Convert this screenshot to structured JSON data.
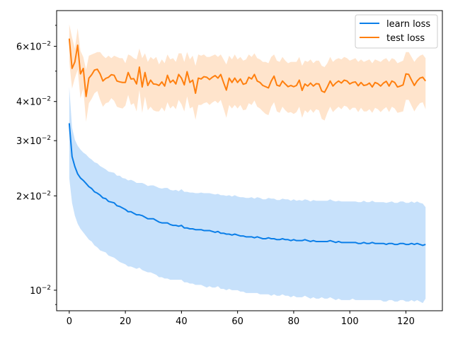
{
  "chart_data": {
    "type": "line",
    "title": "",
    "xlabel": "",
    "ylabel": "",
    "xlim": [
      -4.5,
      133
    ],
    "ylim": [
      0.0086,
      0.078
    ],
    "yscale": "log",
    "grid": false,
    "legend_position": "top-right",
    "x_ticks": [
      0,
      20,
      40,
      60,
      80,
      100,
      120
    ],
    "x_tick_labels": [
      "0",
      "20",
      "40",
      "60",
      "80",
      "100",
      "120"
    ],
    "y_major_ticks": [
      {
        "value": 0.01,
        "mantissa": "10",
        "exp": "−2"
      },
      {
        "value": 0.02,
        "mantissa": "2×10",
        "exp": "−2"
      },
      {
        "value": 0.03,
        "mantissa": "3×10",
        "exp": "−2"
      },
      {
        "value": 0.04,
        "mantissa": "4×10",
        "exp": "−2"
      },
      {
        "value": 0.06,
        "mantissa": "6×10",
        "exp": "−2"
      }
    ],
    "y_minor_ticks": [
      0.009,
      0.05,
      0.07
    ],
    "series": [
      {
        "name": "learn loss",
        "color": "#0a7ee8",
        "band_color": "#8fc3f7",
        "x": [
          0,
          1,
          2,
          3,
          4,
          5,
          6,
          7,
          8,
          9,
          10,
          11,
          12,
          13,
          14,
          15,
          16,
          17,
          18,
          19,
          20,
          21,
          22,
          23,
          24,
          25,
          26,
          27,
          28,
          29,
          30,
          31,
          32,
          33,
          34,
          35,
          36,
          37,
          38,
          39,
          40,
          41,
          42,
          43,
          44,
          45,
          46,
          47,
          48,
          49,
          50,
          51,
          52,
          53,
          54,
          55,
          56,
          57,
          58,
          59,
          60,
          61,
          62,
          63,
          64,
          65,
          66,
          67,
          68,
          69,
          70,
          71,
          72,
          73,
          74,
          75,
          76,
          77,
          78,
          79,
          80,
          81,
          82,
          83,
          84,
          85,
          86,
          87,
          88,
          89,
          90,
          91,
          92,
          93,
          94,
          95,
          96,
          97,
          98,
          99,
          100,
          101,
          102,
          103,
          104,
          105,
          106,
          107,
          108,
          109,
          110,
          111,
          112,
          113,
          114,
          115,
          116,
          117,
          118,
          119,
          120,
          121,
          122,
          123,
          124,
          125,
          126,
          127
        ],
        "y": [
          0.0341,
          0.0267,
          0.0248,
          0.0235,
          0.0228,
          0.0224,
          0.0219,
          0.0214,
          0.0211,
          0.0206,
          0.0204,
          0.0201,
          0.0197,
          0.0196,
          0.0192,
          0.0191,
          0.019,
          0.0186,
          0.0185,
          0.0183,
          0.0181,
          0.0178,
          0.0178,
          0.0176,
          0.0174,
          0.0174,
          0.0173,
          0.0171,
          0.0169,
          0.0169,
          0.0169,
          0.0167,
          0.0165,
          0.0164,
          0.0164,
          0.0164,
          0.0162,
          0.0161,
          0.0161,
          0.016,
          0.0161,
          0.0158,
          0.0158,
          0.0157,
          0.0157,
          0.0156,
          0.0156,
          0.0156,
          0.0155,
          0.0155,
          0.0155,
          0.0154,
          0.0153,
          0.0154,
          0.0152,
          0.0152,
          0.0151,
          0.0151,
          0.015,
          0.0151,
          0.015,
          0.0149,
          0.0149,
          0.0148,
          0.0148,
          0.0148,
          0.0147,
          0.0148,
          0.0147,
          0.0146,
          0.0146,
          0.0147,
          0.0146,
          0.0146,
          0.0145,
          0.0145,
          0.0146,
          0.0145,
          0.0145,
          0.0144,
          0.0145,
          0.0144,
          0.0144,
          0.0144,
          0.0145,
          0.0144,
          0.0143,
          0.0144,
          0.0143,
          0.0143,
          0.0143,
          0.0143,
          0.0143,
          0.0144,
          0.0143,
          0.0142,
          0.0143,
          0.0142,
          0.0142,
          0.0142,
          0.0142,
          0.0142,
          0.0142,
          0.0141,
          0.0141,
          0.0142,
          0.0141,
          0.0141,
          0.0142,
          0.0141,
          0.0141,
          0.0141,
          0.0141,
          0.014,
          0.0141,
          0.0141,
          0.014,
          0.014,
          0.0141,
          0.0141,
          0.014,
          0.014,
          0.0141,
          0.014,
          0.0141,
          0.014,
          0.0139,
          0.014
        ],
        "upper": [
          0.0445,
          0.033,
          0.0302,
          0.0289,
          0.0281,
          0.0275,
          0.0271,
          0.0265,
          0.0261,
          0.0256,
          0.0254,
          0.0249,
          0.0246,
          0.0243,
          0.0239,
          0.0238,
          0.0237,
          0.0232,
          0.0232,
          0.0228,
          0.0227,
          0.0224,
          0.0225,
          0.0223,
          0.022,
          0.022,
          0.022,
          0.0218,
          0.0215,
          0.0216,
          0.0216,
          0.0214,
          0.0212,
          0.0211,
          0.0212,
          0.0212,
          0.0209,
          0.0208,
          0.0209,
          0.0207,
          0.021,
          0.0206,
          0.0206,
          0.0205,
          0.0205,
          0.0204,
          0.0204,
          0.0205,
          0.0204,
          0.0204,
          0.0204,
          0.0203,
          0.0202,
          0.0203,
          0.0201,
          0.0201,
          0.02,
          0.0201,
          0.0199,
          0.0201,
          0.0199,
          0.0198,
          0.0198,
          0.0197,
          0.0197,
          0.0198,
          0.0196,
          0.0198,
          0.0197,
          0.0195,
          0.0195,
          0.0197,
          0.0196,
          0.0196,
          0.0194,
          0.0194,
          0.0196,
          0.0195,
          0.0195,
          0.0193,
          0.0195,
          0.0193,
          0.0194,
          0.0193,
          0.0195,
          0.0194,
          0.0192,
          0.0194,
          0.0193,
          0.0193,
          0.0193,
          0.0193,
          0.0193,
          0.0195,
          0.0193,
          0.0192,
          0.0193,
          0.0192,
          0.0192,
          0.0192,
          0.0192,
          0.0192,
          0.0192,
          0.0191,
          0.0191,
          0.0193,
          0.0191,
          0.0191,
          0.0193,
          0.0191,
          0.0191,
          0.0191,
          0.0191,
          0.019,
          0.0191,
          0.0192,
          0.019,
          0.019,
          0.0192,
          0.0192,
          0.019,
          0.019,
          0.0192,
          0.019,
          0.0192,
          0.019,
          0.0189,
          0.0184
        ],
        "lower": [
          0.0228,
          0.019,
          0.0173,
          0.0163,
          0.0157,
          0.0153,
          0.0149,
          0.0145,
          0.0143,
          0.0139,
          0.0137,
          0.0134,
          0.0133,
          0.0132,
          0.0129,
          0.0128,
          0.0127,
          0.0125,
          0.0123,
          0.0122,
          0.0121,
          0.0119,
          0.0119,
          0.0118,
          0.0117,
          0.0118,
          0.0116,
          0.0115,
          0.0114,
          0.0114,
          0.0113,
          0.0112,
          0.011,
          0.011,
          0.0109,
          0.0109,
          0.0108,
          0.0108,
          0.0108,
          0.0108,
          0.0108,
          0.0106,
          0.0106,
          0.0105,
          0.0105,
          0.0104,
          0.0104,
          0.0104,
          0.0103,
          0.0102,
          0.0103,
          0.0102,
          0.0102,
          0.0103,
          0.0101,
          0.0101,
          0.01,
          0.0101,
          0.01,
          0.01,
          0.01,
          0.0099,
          0.0099,
          0.0098,
          0.0098,
          0.0098,
          0.0098,
          0.0098,
          0.0097,
          0.0097,
          0.0097,
          0.0097,
          0.0096,
          0.0097,
          0.0096,
          0.0096,
          0.0097,
          0.0096,
          0.0096,
          0.0095,
          0.0096,
          0.0095,
          0.0095,
          0.0095,
          0.0096,
          0.0095,
          0.0094,
          0.0095,
          0.0094,
          0.0094,
          0.0095,
          0.0094,
          0.0094,
          0.0095,
          0.0094,
          0.0093,
          0.0094,
          0.0093,
          0.0093,
          0.0093,
          0.0093,
          0.0094,
          0.0093,
          0.0093,
          0.0093,
          0.0093,
          0.0093,
          0.0093,
          0.0093,
          0.0093,
          0.0093,
          0.0093,
          0.0092,
          0.0092,
          0.0093,
          0.0093,
          0.0092,
          0.0092,
          0.0093,
          0.0093,
          0.0092,
          0.0092,
          0.0093,
          0.0092,
          0.0093,
          0.0092,
          0.0091,
          0.0094
        ]
      },
      {
        "name": "test loss",
        "color": "#ff7f0e",
        "band_color": "#ffc999",
        "x": [
          0,
          1,
          2,
          3,
          4,
          5,
          6,
          7,
          8,
          9,
          10,
          11,
          12,
          13,
          14,
          15,
          16,
          17,
          18,
          19,
          20,
          21,
          22,
          23,
          24,
          25,
          26,
          27,
          28,
          29,
          30,
          31,
          32,
          33,
          34,
          35,
          36,
          37,
          38,
          39,
          40,
          41,
          42,
          43,
          44,
          45,
          46,
          47,
          48,
          49,
          50,
          51,
          52,
          53,
          54,
          55,
          56,
          57,
          58,
          59,
          60,
          61,
          62,
          63,
          64,
          65,
          66,
          67,
          68,
          69,
          70,
          71,
          72,
          73,
          74,
          75,
          76,
          77,
          78,
          79,
          80,
          81,
          82,
          83,
          84,
          85,
          86,
          87,
          88,
          89,
          90,
          91,
          92,
          93,
          94,
          95,
          96,
          97,
          98,
          99,
          100,
          101,
          102,
          103,
          104,
          105,
          106,
          107,
          108,
          109,
          110,
          111,
          112,
          113,
          114,
          115,
          116,
          117,
          118,
          119,
          120,
          121,
          122,
          123,
          124,
          125,
          126,
          127
        ],
        "y": [
          0.0635,
          0.051,
          0.0535,
          0.0605,
          0.049,
          0.051,
          0.0415,
          0.0475,
          0.0487,
          0.0504,
          0.0507,
          0.049,
          0.0465,
          0.0474,
          0.0478,
          0.0487,
          0.0485,
          0.0465,
          0.0462,
          0.046,
          0.046,
          0.0495,
          0.0472,
          0.0473,
          0.0455,
          0.0515,
          0.0445,
          0.0495,
          0.045,
          0.0468,
          0.0455,
          0.0454,
          0.045,
          0.0462,
          0.0448,
          0.0485,
          0.046,
          0.0468,
          0.0455,
          0.0488,
          0.0475,
          0.0452,
          0.0498,
          0.046,
          0.0468,
          0.0425,
          0.0475,
          0.0472,
          0.048,
          0.0478,
          0.047,
          0.0478,
          0.0484,
          0.0475,
          0.0488,
          0.046,
          0.0435,
          0.0475,
          0.046,
          0.0475,
          0.046,
          0.0472,
          0.0454,
          0.0457,
          0.0478,
          0.0472,
          0.0488,
          0.0465,
          0.046,
          0.045,
          0.0446,
          0.0442,
          0.0465,
          0.0482,
          0.0451,
          0.0448,
          0.0465,
          0.0455,
          0.0446,
          0.045,
          0.0446,
          0.045,
          0.0468,
          0.0434,
          0.0455,
          0.0448,
          0.0458,
          0.0448,
          0.0456,
          0.0455,
          0.0432,
          0.0428,
          0.0445,
          0.0465,
          0.0448,
          0.0458,
          0.0465,
          0.0458,
          0.0468,
          0.0465,
          0.0455,
          0.046,
          0.0462,
          0.0449,
          0.046,
          0.045,
          0.0452,
          0.0458,
          0.0445,
          0.046,
          0.0456,
          0.0448,
          0.0458,
          0.0464,
          0.0448,
          0.0465,
          0.046,
          0.0445,
          0.0448,
          0.0452,
          0.049,
          0.0488,
          0.0468,
          0.045,
          0.0465,
          0.0475,
          0.0478,
          0.0465
        ],
        "upper": [
          0.0705,
          0.064,
          0.059,
          0.0685,
          0.058,
          0.0555,
          0.0505,
          0.056,
          0.0565,
          0.057,
          0.0575,
          0.0575,
          0.056,
          0.055,
          0.056,
          0.055,
          0.056,
          0.0555,
          0.055,
          0.055,
          0.053,
          0.0565,
          0.056,
          0.055,
          0.0545,
          0.059,
          0.055,
          0.057,
          0.0535,
          0.0555,
          0.0545,
          0.0555,
          0.0525,
          0.0545,
          0.053,
          0.0565,
          0.0545,
          0.055,
          0.0535,
          0.057,
          0.057,
          0.0535,
          0.0575,
          0.0545,
          0.056,
          0.052,
          0.0565,
          0.056,
          0.0565,
          0.0555,
          0.0555,
          0.056,
          0.0565,
          0.0555,
          0.0565,
          0.0545,
          0.0525,
          0.056,
          0.0545,
          0.0565,
          0.0545,
          0.0555,
          0.054,
          0.0545,
          0.0565,
          0.0555,
          0.057,
          0.055,
          0.0545,
          0.0535,
          0.0535,
          0.053,
          0.0555,
          0.0565,
          0.054,
          0.0535,
          0.0555,
          0.054,
          0.053,
          0.0535,
          0.0535,
          0.0535,
          0.0555,
          0.052,
          0.054,
          0.0535,
          0.0545,
          0.053,
          0.054,
          0.054,
          0.052,
          0.0515,
          0.053,
          0.0555,
          0.0535,
          0.0545,
          0.055,
          0.0545,
          0.0555,
          0.055,
          0.054,
          0.0545,
          0.055,
          0.0535,
          0.0545,
          0.0535,
          0.054,
          0.0545,
          0.053,
          0.0545,
          0.054,
          0.0535,
          0.0545,
          0.055,
          0.0535,
          0.055,
          0.0545,
          0.053,
          0.0535,
          0.054,
          0.0575,
          0.0575,
          0.0555,
          0.0535,
          0.055,
          0.056,
          0.0565,
          0.055
        ],
        "lower": [
          0.0535,
          0.044,
          0.0475,
          0.0505,
          0.041,
          0.044,
          0.0345,
          0.0395,
          0.0408,
          0.0425,
          0.0432,
          0.0405,
          0.0385,
          0.0395,
          0.0398,
          0.041,
          0.0402,
          0.0385,
          0.0382,
          0.038,
          0.0388,
          0.042,
          0.039,
          0.0395,
          0.0372,
          0.0435,
          0.0368,
          0.0415,
          0.0375,
          0.0385,
          0.0375,
          0.0372,
          0.0372,
          0.0383,
          0.0372,
          0.0398,
          0.038,
          0.0388,
          0.0378,
          0.0405,
          0.0392,
          0.0372,
          0.0415,
          0.038,
          0.0385,
          0.035,
          0.039,
          0.039,
          0.0395,
          0.0398,
          0.039,
          0.0397,
          0.0402,
          0.0395,
          0.0405,
          0.038,
          0.0355,
          0.039,
          0.038,
          0.039,
          0.038,
          0.039,
          0.0375,
          0.0377,
          0.0395,
          0.039,
          0.0403,
          0.0385,
          0.038,
          0.0372,
          0.0365,
          0.0362,
          0.0385,
          0.0398,
          0.0372,
          0.0368,
          0.0385,
          0.0375,
          0.0368,
          0.037,
          0.0365,
          0.037,
          0.0385,
          0.0355,
          0.0375,
          0.0368,
          0.0378,
          0.0368,
          0.0378,
          0.0375,
          0.0352,
          0.0348,
          0.0368,
          0.0385,
          0.037,
          0.0378,
          0.0385,
          0.0378,
          0.0388,
          0.0385,
          0.0375,
          0.0382,
          0.0382,
          0.037,
          0.0382,
          0.0372,
          0.0372,
          0.0378,
          0.0368,
          0.0382,
          0.0378,
          0.037,
          0.0378,
          0.0384,
          0.037,
          0.0385,
          0.038,
          0.0368,
          0.037,
          0.0372,
          0.0405,
          0.0405,
          0.0388,
          0.0372,
          0.0385,
          0.0395,
          0.0398,
          0.0378
        ]
      }
    ]
  }
}
